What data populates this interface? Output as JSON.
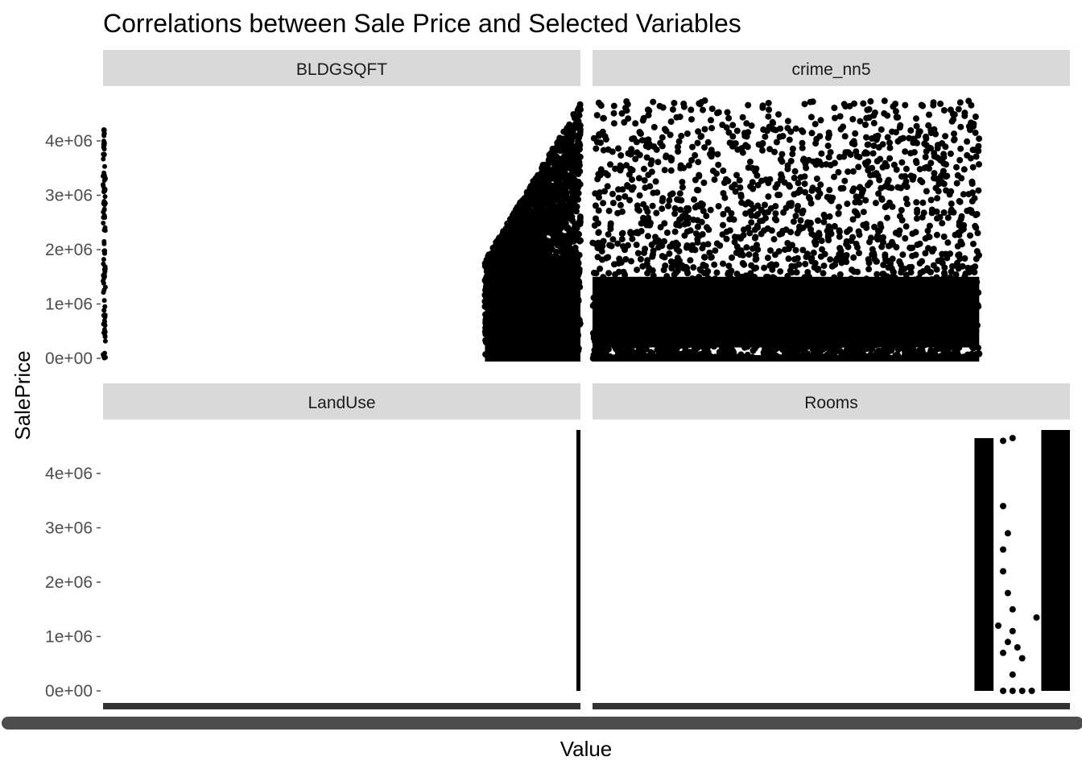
{
  "chart_data": {
    "type": "scatter",
    "title": "Correlations between Sale Price and Selected Variables",
    "xlabel": "Value",
    "ylabel": "SalePrice",
    "facet_layout": "2x2 grid, shared y axis, free x scales",
    "y_ticks": [
      "0e+00",
      "1e+06",
      "2e+06",
      "3e+06",
      "4e+06"
    ],
    "y_tick_values": [
      0,
      1000000,
      2000000,
      3000000,
      4000000
    ],
    "ylim": [
      0,
      4750000
    ],
    "grid": false,
    "point_color": "#000000",
    "strip_color": "#d9d9d9",
    "x_axis_color": "#333333",
    "facets": [
      {
        "name": "BLDGSQFT",
        "xlim": [
          0,
          1
        ],
        "clusters": [
          {
            "x": [
              0.0,
              0.005
            ],
            "y_min": 0,
            "y_max": 4300000,
            "density": "vertical column of points",
            "n": 90
          },
          {
            "x": [
              0.8,
              1.0
            ],
            "y_min": 0,
            "y_max": 4750000,
            "density": "dense mass below 1.9e+06, rising scatter to ~4.7e+06",
            "n": 2400
          }
        ]
      },
      {
        "name": "crime_nn5",
        "xlim": [
          0,
          1
        ],
        "clusters": [
          {
            "x": [
              0.0,
              0.81
            ],
            "y_min": 0,
            "y_max": 4750000,
            "density": "dense band 0.2e+06 to 1.6e+06 with spread to ~4.7e+06",
            "n": 2600
          },
          {
            "x": [
              0.0,
              0.81
            ],
            "y_min": 0,
            "y_max": 0,
            "density": "baseline row at 0",
            "n": 0
          }
        ]
      },
      {
        "name": "LandUse",
        "xlim": [
          0,
          1
        ],
        "clusters": [
          {
            "x": [
              0.996,
              1.0
            ],
            "y_min": 0,
            "y_max": 4800000,
            "density": "single vertical line of points",
            "n": 0
          }
        ]
      },
      {
        "name": "Rooms",
        "xlim": [
          0,
          1
        ],
        "clusters": [
          {
            "x": [
              0.8,
              0.84
            ],
            "y_min": 0,
            "y_max": 4650000,
            "density": "dense column",
            "n": 0
          },
          {
            "x": [
              0.94,
              1.0
            ],
            "y_min": 0,
            "y_max": 4800000,
            "density": "dense column",
            "n": 0
          }
        ]
      }
    ]
  }
}
